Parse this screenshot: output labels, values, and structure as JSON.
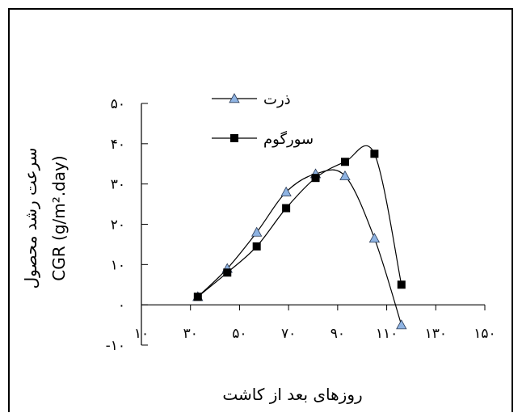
{
  "chart_data": {
    "type": "line",
    "xlabel": "روزهای بعد از کاشت",
    "ylabel_fa": "سرعت رشد محصول",
    "ylabel_en": "CGR (g/m².day)",
    "ylim": [
      -10,
      50
    ],
    "xlim": [
      10,
      150
    ],
    "x_ticks": [
      10,
      30,
      50,
      70,
      90,
      110,
      130,
      150
    ],
    "x_tick_labels": [
      "۱۰",
      "۳۰",
      "۵۰",
      "۷۰",
      "۹۰",
      "۱۱۰",
      "۱۳۰",
      "۱۵۰"
    ],
    "y_ticks": [
      -10,
      0,
      10,
      20,
      30,
      40,
      50
    ],
    "y_tick_labels": [
      "-۱۰",
      "۰",
      "۱۰",
      "۲۰",
      "۳۰",
      "۴۰",
      "۵۰"
    ],
    "grid": false,
    "legend_position": "top-center",
    "series": [
      {
        "name": "ذرت",
        "marker": "triangle",
        "marker_color": "#8fb4e3",
        "x": [
          33,
          45,
          57,
          69,
          81,
          93,
          105,
          116
        ],
        "y": [
          2,
          9,
          18,
          28,
          32.5,
          32,
          16.5,
          -5
        ]
      },
      {
        "name": "سورگوم",
        "marker": "square",
        "marker_color": "#000000",
        "x": [
          33,
          45,
          57,
          69,
          81,
          93,
          105,
          116
        ],
        "y": [
          2,
          8,
          14.5,
          24,
          31.5,
          35.5,
          37.5,
          5
        ]
      }
    ]
  }
}
